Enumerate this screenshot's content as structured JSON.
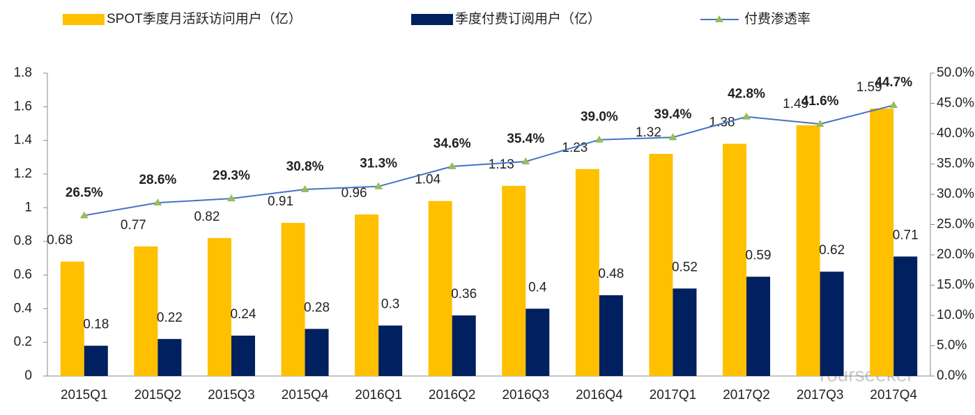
{
  "chart_data": {
    "type": "bar",
    "categories": [
      "2015Q1",
      "2015Q2",
      "2015Q3",
      "2015Q4",
      "2016Q1",
      "2016Q2",
      "2016Q3",
      "2016Q4",
      "2017Q1",
      "2017Q2",
      "2017Q3",
      "2017Q4"
    ],
    "series": [
      {
        "name": "SPOT季度月活跃访问用户（亿）",
        "color": "#FFC000",
        "type": "bar",
        "values": [
          0.68,
          0.77,
          0.82,
          0.91,
          0.96,
          1.04,
          1.13,
          1.23,
          1.32,
          1.38,
          1.49,
          1.59
        ]
      },
      {
        "name": "季度付费订阅用户（亿）",
        "color": "#002060",
        "type": "bar",
        "values": [
          0.18,
          0.22,
          0.24,
          0.28,
          0.3,
          0.36,
          0.4,
          0.48,
          0.52,
          0.59,
          0.62,
          0.71
        ]
      },
      {
        "name": "付费渗透率",
        "color": "#4472C4",
        "marker_color": "#9BBB59",
        "type": "line",
        "axis": "y2",
        "values": [
          26.5,
          28.6,
          29.3,
          30.8,
          31.3,
          34.6,
          35.4,
          39.0,
          39.4,
          42.8,
          41.6,
          44.7
        ],
        "value_labels": [
          "26.5%",
          "28.6%",
          "29.3%",
          "30.8%",
          "31.3%",
          "34.6%",
          "35.4%",
          "39.0%",
          "39.4%",
          "42.8%",
          "41.6%",
          "44.7%"
        ]
      }
    ],
    "ylim": [
      0,
      1.8
    ],
    "yticks": [
      0,
      0.2,
      0.4,
      0.6,
      0.8,
      1,
      1.2,
      1.4,
      1.6,
      1.8
    ],
    "y2lim": [
      0,
      50
    ],
    "y2ticks": [
      {
        "value": 0,
        "label": "0.0%"
      },
      {
        "value": 5,
        "label": "5.0%"
      },
      {
        "value": 10,
        "label": "10.0%"
      },
      {
        "value": 15,
        "label": "15.0%"
      },
      {
        "value": 20,
        "label": "20.0%"
      },
      {
        "value": 25,
        "label": "25.0%"
      },
      {
        "value": 30,
        "label": "30.0%"
      },
      {
        "value": 35,
        "label": "35.0%"
      },
      {
        "value": 40,
        "label": "40.0%"
      },
      {
        "value": 45,
        "label": "45.0%"
      },
      {
        "value": 50,
        "label": "50.0%"
      }
    ],
    "legend": "top",
    "watermark": "Yourseeker"
  }
}
